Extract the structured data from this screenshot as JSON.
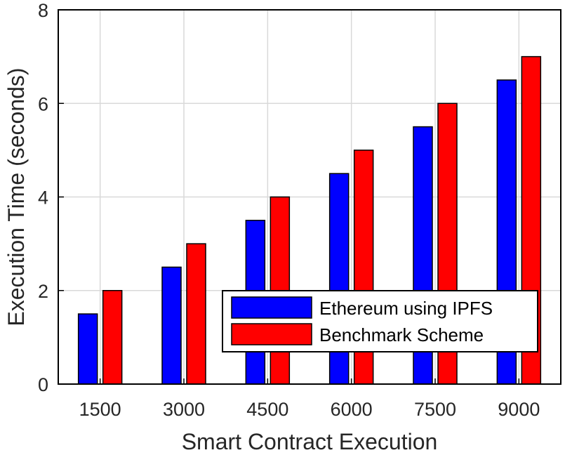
{
  "chart_data": {
    "type": "bar",
    "title": "",
    "xlabel": "Smart Contract Execution",
    "ylabel": "Execution Time (seconds)",
    "categories": [
      "1500",
      "3000",
      "4500",
      "6000",
      "7500",
      "9000"
    ],
    "series": [
      {
        "name": "Ethereum using IPFS",
        "color": "#0000ff",
        "values": [
          1.5,
          2.5,
          3.5,
          4.5,
          5.5,
          6.5
        ]
      },
      {
        "name": "Benchmark Scheme",
        "color": "#ff0000",
        "values": [
          2,
          3,
          4,
          5,
          6,
          7
        ]
      }
    ],
    "ylim": [
      0,
      8
    ],
    "yticks": [
      0,
      2,
      4,
      6,
      8
    ],
    "grid": true,
    "legend_position": "bottom-right"
  }
}
